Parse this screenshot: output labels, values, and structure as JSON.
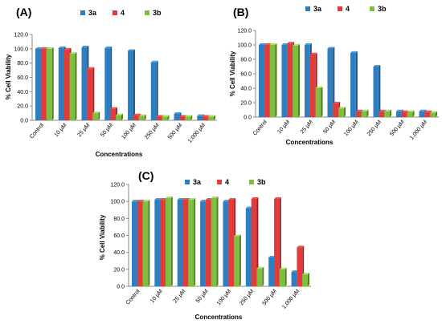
{
  "chart_data": [
    {
      "type": "bar",
      "panel_label": "(A)",
      "categories": [
        "Control",
        "10 µM",
        "25 µM",
        "50 µM",
        "100 µM",
        "250 µM",
        "500 µM",
        "1,000 µM"
      ],
      "series": [
        {
          "name": "3a",
          "color": "#2f7ebf",
          "values": [
            100,
            101,
            102,
            101,
            97,
            81,
            9,
            6
          ]
        },
        {
          "name": "4",
          "color": "#e23b3b",
          "values": [
            100,
            99,
            72,
            16,
            7,
            5,
            5,
            5
          ]
        },
        {
          "name": "3b",
          "color": "#7fbf3f",
          "values": [
            100,
            93,
            10,
            7,
            6,
            5,
            5,
            5
          ]
        }
      ],
      "xlabel": "Concentrations",
      "ylabel": "% Cell Viability",
      "ylim": [
        0,
        120
      ],
      "yticks": [
        "0.0",
        "20.0",
        "40.0",
        "60.0",
        "80.0",
        "100.0",
        "120.0"
      ],
      "grid": false,
      "legend": "top"
    },
    {
      "type": "bar",
      "panel_label": "(B)",
      "categories": [
        "Control",
        "10 µM",
        "25 µM",
        "50 µM",
        "100 µM",
        "250 µM",
        "500 µM",
        "1,000 µM"
      ],
      "series": [
        {
          "name": "3a",
          "color": "#2f7ebf",
          "values": [
            100,
            100,
            100,
            95,
            89,
            70,
            8,
            8
          ]
        },
        {
          "name": "4",
          "color": "#e23b3b",
          "values": [
            100,
            102,
            87,
            19,
            8,
            8,
            7,
            7
          ]
        },
        {
          "name": "3b",
          "color": "#7fbf3f",
          "values": [
            100,
            99,
            40,
            12,
            8,
            8,
            7,
            6
          ]
        }
      ],
      "xlabel": "Concentrations",
      "ylabel": "% Cell Viability",
      "ylim": [
        0,
        120
      ],
      "yticks": [
        "0.0",
        "20.0",
        "40.0",
        "60.0",
        "80.0",
        "100.0",
        "120.0"
      ],
      "grid": false,
      "legend": "top"
    },
    {
      "type": "bar",
      "panel_label": "(C)",
      "categories": [
        "Control",
        "10 µM",
        "25 µM",
        "50 µM",
        "100 µM",
        "250 µM",
        "500 µM",
        "1,000 µM"
      ],
      "series": [
        {
          "name": "3a",
          "color": "#2f7ebf",
          "values": [
            100,
            102,
            102,
            100,
            100,
            92,
            34,
            17
          ]
        },
        {
          "name": "4",
          "color": "#e23b3b",
          "values": [
            100,
            102,
            102,
            102,
            102,
            103,
            103,
            46
          ]
        },
        {
          "name": "3b",
          "color": "#7fbf3f",
          "values": [
            100,
            104,
            102,
            104,
            59,
            21,
            20,
            14
          ]
        }
      ],
      "xlabel": "Concentrations",
      "ylabel": "% Cell Viability",
      "ylim": [
        0,
        120
      ],
      "yticks": [
        "0.0",
        "20.0",
        "40.0",
        "60.0",
        "80.0",
        "100.0",
        "120.0"
      ],
      "grid": false,
      "legend": "top"
    }
  ]
}
